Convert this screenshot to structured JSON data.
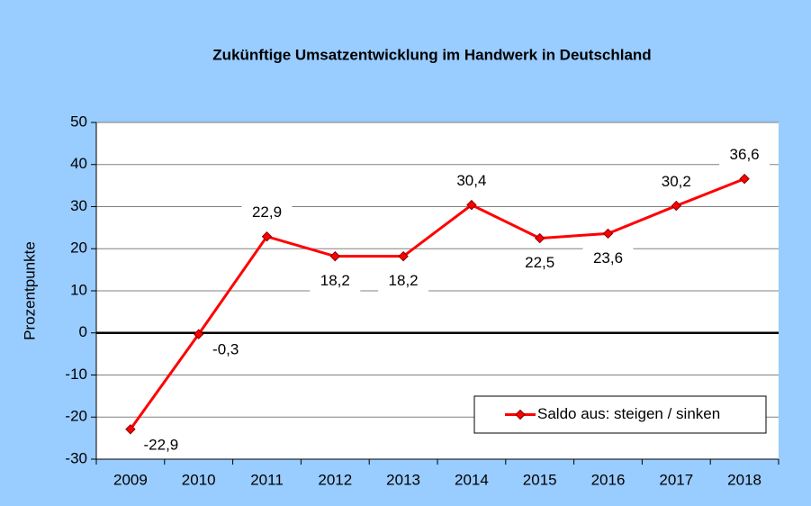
{
  "chart_data": {
    "type": "line",
    "title": "Zukünftige Umsatzentwicklung im Handwerk in Deutschland",
    "y_label": "Prozentpunkte",
    "categories": [
      "2009",
      "2010",
      "2011",
      "2012",
      "2013",
      "2014",
      "2015",
      "2016",
      "2017",
      "2018"
    ],
    "series": [
      {
        "name": "Saldo aus: steigen / sinken",
        "color": "#ff0000",
        "values": [
          -22.9,
          -0.3,
          22.9,
          18.2,
          18.2,
          30.4,
          22.5,
          23.6,
          30.2,
          36.6
        ],
        "value_labels": [
          "-22,9",
          "-0,3",
          "22,9",
          "18,2",
          "18,2",
          "30,4",
          "22,5",
          "23,6",
          "30,2",
          "36,6"
        ]
      }
    ],
    "ylim": [
      -30,
      50
    ],
    "yticks": [
      -30,
      -20,
      -10,
      0,
      10,
      20,
      30,
      40,
      50
    ],
    "grid": true,
    "legend": "lower right"
  }
}
